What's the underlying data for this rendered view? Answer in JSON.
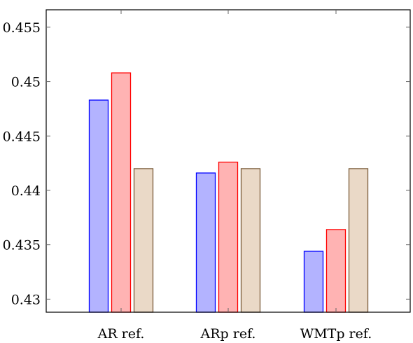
{
  "chart_data": {
    "type": "bar",
    "categories": [
      "AR ref.",
      "ARp ref.",
      "WMTp ref."
    ],
    "series": [
      {
        "values": [
          0.4483,
          0.4416,
          0.4344
        ],
        "fill": "#b3b3ff",
        "stroke": "#0000ff"
      },
      {
        "values": [
          0.4508,
          0.4426,
          0.4364
        ],
        "fill": "#ffb3b3",
        "stroke": "#ff0000"
      },
      {
        "values": [
          0.442,
          0.442,
          0.442
        ],
        "fill": "#ead9c7",
        "stroke": "#7a5c3a"
      }
    ],
    "y_ticks": [
      "0.43",
      "0.435",
      "0.44",
      "0.445",
      "0.45",
      "0.455"
    ],
    "y_tick_values": [
      0.43,
      0.435,
      0.44,
      0.445,
      0.45,
      0.455
    ],
    "ylim": [
      0.4288,
      0.4566
    ],
    "title": "",
    "xlabel": "",
    "ylabel": "",
    "grid": false,
    "legend": false
  }
}
